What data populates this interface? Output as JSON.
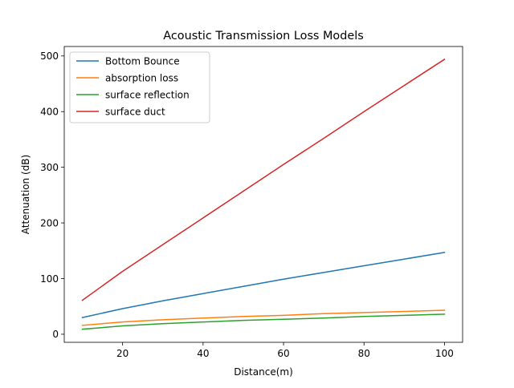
{
  "chart_data": {
    "type": "line",
    "title": "Acoustic Transmission Loss Models",
    "xlabel": "Distance(m)",
    "ylabel": "Attenuation (dB)",
    "xlim": [
      5.5,
      104.5
    ],
    "ylim": [
      -14.5,
      517
    ],
    "xticks": [
      20,
      40,
      60,
      80,
      100
    ],
    "yticks": [
      0,
      100,
      200,
      300,
      400,
      500
    ],
    "grid": false,
    "legend_position": "top-left",
    "x": [
      10,
      20,
      30,
      40,
      50,
      60,
      70,
      80,
      90,
      100
    ],
    "series": [
      {
        "name": "Bottom Bounce",
        "color": "#1f77b4",
        "values": [
          30,
          46,
          60,
          73,
          86,
          99,
          111,
          123,
          135,
          147
        ]
      },
      {
        "name": "absorption loss",
        "color": "#ff7f0e",
        "values": [
          16,
          22,
          26,
          29,
          32,
          34,
          37,
          39,
          41,
          43
        ]
      },
      {
        "name": "surface reflection",
        "color": "#2ca02c",
        "values": [
          9,
          15,
          19,
          22,
          25,
          27,
          29,
          32,
          34,
          36
        ]
      },
      {
        "name": "surface duct",
        "color": "#d62728",
        "values": [
          61,
          113,
          161,
          209,
          257,
          305,
          352,
          400,
          447,
          494
        ]
      }
    ]
  }
}
